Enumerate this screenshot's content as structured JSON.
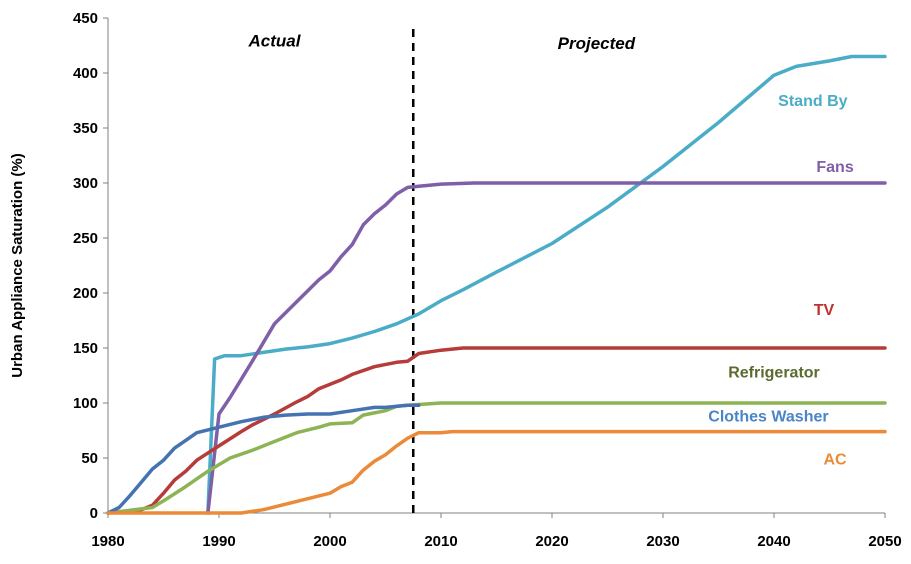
{
  "chart_data": {
    "type": "line",
    "title": "",
    "xlabel": "",
    "ylabel": "Urban Appliance Saturation (%)",
    "xlim": [
      1980,
      2050
    ],
    "ylim": [
      0,
      450
    ],
    "x_ticks": [
      "1980",
      "1990",
      "2000",
      "2010",
      "2020",
      "2030",
      "2040",
      "2050"
    ],
    "y_ticks": [
      "0",
      "50",
      "100",
      "150",
      "200",
      "250",
      "300",
      "350",
      "400",
      "450"
    ],
    "grid": false,
    "divider_year": 2007.5,
    "regions": {
      "left": "Actual",
      "right": "Projected"
    },
    "series": [
      {
        "name": "Stand By",
        "color": "#4aacc6",
        "points": [
          [
            1989,
            0
          ],
          [
            1989.6,
            140
          ],
          [
            1990.5,
            143
          ],
          [
            1992,
            143
          ],
          [
            1994,
            146
          ],
          [
            1996,
            149
          ],
          [
            1998,
            151
          ],
          [
            2000,
            154
          ],
          [
            2002,
            159
          ],
          [
            2004,
            165
          ],
          [
            2006,
            172
          ],
          [
            2008,
            181
          ],
          [
            2010,
            193
          ],
          [
            2012,
            203
          ],
          [
            2015,
            219
          ],
          [
            2020,
            245
          ],
          [
            2025,
            278
          ],
          [
            2030,
            315
          ],
          [
            2035,
            355
          ],
          [
            2040,
            398
          ],
          [
            2042,
            406
          ],
          [
            2045,
            411
          ],
          [
            2047,
            415
          ],
          [
            2050,
            415
          ]
        ]
      },
      {
        "name": "Fans",
        "color": "#7f5fa8",
        "points": [
          [
            1989,
            0
          ],
          [
            1990,
            90
          ],
          [
            1991,
            105
          ],
          [
            1993,
            138
          ],
          [
            1995,
            172
          ],
          [
            1997,
            192
          ],
          [
            1999,
            212
          ],
          [
            2000,
            220
          ],
          [
            2001,
            233
          ],
          [
            2002,
            244
          ],
          [
            2003,
            262
          ],
          [
            2004,
            272
          ],
          [
            2005,
            280
          ],
          [
            2006,
            290
          ],
          [
            2007,
            296
          ],
          [
            2008,
            297
          ],
          [
            2010,
            299
          ],
          [
            2013,
            300
          ],
          [
            2050,
            300
          ]
        ]
      },
      {
        "name": "TV",
        "color": "#b63c3a",
        "points": [
          [
            1980,
            0
          ],
          [
            1983,
            3
          ],
          [
            1984,
            7
          ],
          [
            1985,
            18
          ],
          [
            1986,
            30
          ],
          [
            1987,
            38
          ],
          [
            1988,
            48
          ],
          [
            1990,
            61
          ],
          [
            1992,
            74
          ],
          [
            1993,
            80
          ],
          [
            1995,
            90
          ],
          [
            1997,
            101
          ],
          [
            1998,
            106
          ],
          [
            1999,
            113
          ],
          [
            2001,
            121
          ],
          [
            2002,
            126
          ],
          [
            2004,
            133
          ],
          [
            2006,
            137
          ],
          [
            2007,
            138
          ],
          [
            2008,
            145
          ],
          [
            2010,
            148
          ],
          [
            2012,
            150
          ],
          [
            2050,
            150
          ]
        ]
      },
      {
        "name": "Refrigerator",
        "color": "#8cb454",
        "points": [
          [
            1980,
            0
          ],
          [
            1984,
            5
          ],
          [
            1985,
            11
          ],
          [
            1987,
            24
          ],
          [
            1989,
            38
          ],
          [
            1990,
            44
          ],
          [
            1991,
            50
          ],
          [
            1993,
            57
          ],
          [
            1995,
            65
          ],
          [
            1997,
            73
          ],
          [
            1999,
            78
          ],
          [
            2000,
            81
          ],
          [
            2002,
            82
          ],
          [
            2003,
            89
          ],
          [
            2004,
            91
          ],
          [
            2005,
            93
          ],
          [
            2006,
            97
          ],
          [
            2007,
            98
          ],
          [
            2010,
            100
          ],
          [
            2050,
            100
          ]
        ]
      },
      {
        "name": "Clothes Washer",
        "color": "#4573b2",
        "points": [
          [
            1980,
            0
          ],
          [
            1981,
            5
          ],
          [
            1982,
            16
          ],
          [
            1983,
            28
          ],
          [
            1984,
            40
          ],
          [
            1985,
            48
          ],
          [
            1986,
            59
          ],
          [
            1987,
            66
          ],
          [
            1988,
            73
          ],
          [
            1990,
            78
          ],
          [
            1992,
            83
          ],
          [
            1994,
            87
          ],
          [
            1996,
            89
          ],
          [
            1998,
            90
          ],
          [
            2000,
            90
          ],
          [
            2002,
            93
          ],
          [
            2004,
            96
          ],
          [
            2005,
            96
          ],
          [
            2007,
            98
          ],
          [
            2008,
            98
          ]
        ]
      },
      {
        "name": "AC",
        "color": "#eb8a38",
        "points": [
          [
            1980,
            0
          ],
          [
            1992,
            0
          ],
          [
            1994,
            3
          ],
          [
            1996,
            8
          ],
          [
            1998,
            13
          ],
          [
            2000,
            18
          ],
          [
            2001,
            24
          ],
          [
            2002,
            28
          ],
          [
            2003,
            39
          ],
          [
            2004,
            47
          ],
          [
            2005,
            53
          ],
          [
            2006,
            61
          ],
          [
            2007,
            68
          ],
          [
            2008,
            73
          ],
          [
            2010,
            73
          ],
          [
            2011,
            74
          ],
          [
            2050,
            74
          ]
        ]
      }
    ],
    "series_labels": [
      {
        "text": "Stand By",
        "color": "#4aacc6",
        "x": 2043.5,
        "y": 370
      },
      {
        "text": "Fans",
        "color": "#7f5fa8",
        "x": 2045.5,
        "y": 310
      },
      {
        "text": "TV",
        "color": "#c0302e",
        "x": 2044.5,
        "y": 180
      },
      {
        "text": "Refrigerator",
        "color": "#5b6b2f",
        "x": 2040,
        "y": 123
      },
      {
        "text": "Clothes Washer",
        "color": "#4a85c8",
        "x": 2039.5,
        "y": 83
      },
      {
        "text": "AC",
        "color": "#eb8a38",
        "x": 2045.5,
        "y": 44
      }
    ]
  }
}
